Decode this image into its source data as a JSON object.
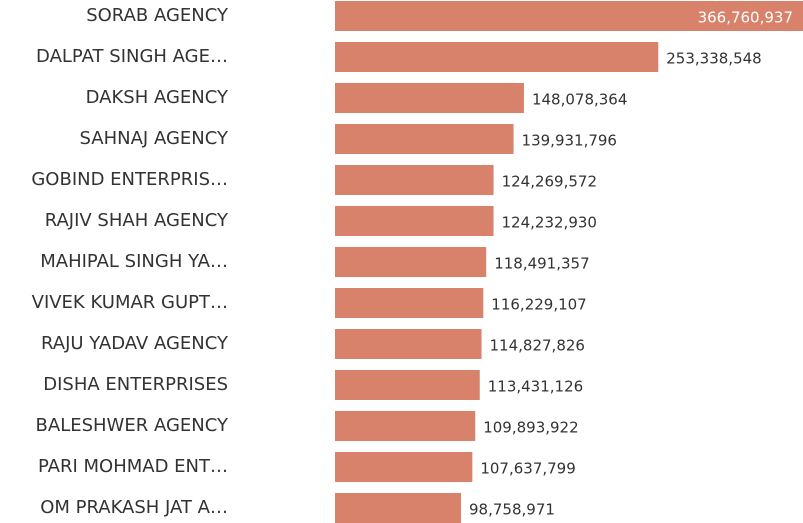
{
  "chart_data": {
    "type": "bar",
    "orientation": "horizontal",
    "color": "#d9826b",
    "categories": [
      "SORAB AGENCY",
      "DALPAT SINGH AGE…",
      "DAKSH AGENCY",
      "SAHNAJ AGENCY",
      "GOBIND ENTERPRIS…",
      "RAJIV SHAH AGENCY",
      "MAHIPAL SINGH YA…",
      "VIVEK KUMAR GUPT…",
      "RAJU YADAV AGENCY",
      "DISHA ENTERPRISES",
      "BALESHWER AGENCY",
      "PARI MOHMAD ENT…",
      "OM PRAKASH JAT A…"
    ],
    "values": [
      366760937,
      253338548,
      148078364,
      139931796,
      124269572,
      124232930,
      118491357,
      116229107,
      114827826,
      113431126,
      109893922,
      107637799,
      98758971
    ],
    "value_labels": [
      "366,760,937",
      "253,338,548",
      "148,078,364",
      "139,931,796",
      "124,269,572",
      "124,232,930",
      "118,491,357",
      "116,229,107",
      "114,827,826",
      "113,431,126",
      "109,893,922",
      "107,637,799",
      "98,758,971"
    ]
  }
}
